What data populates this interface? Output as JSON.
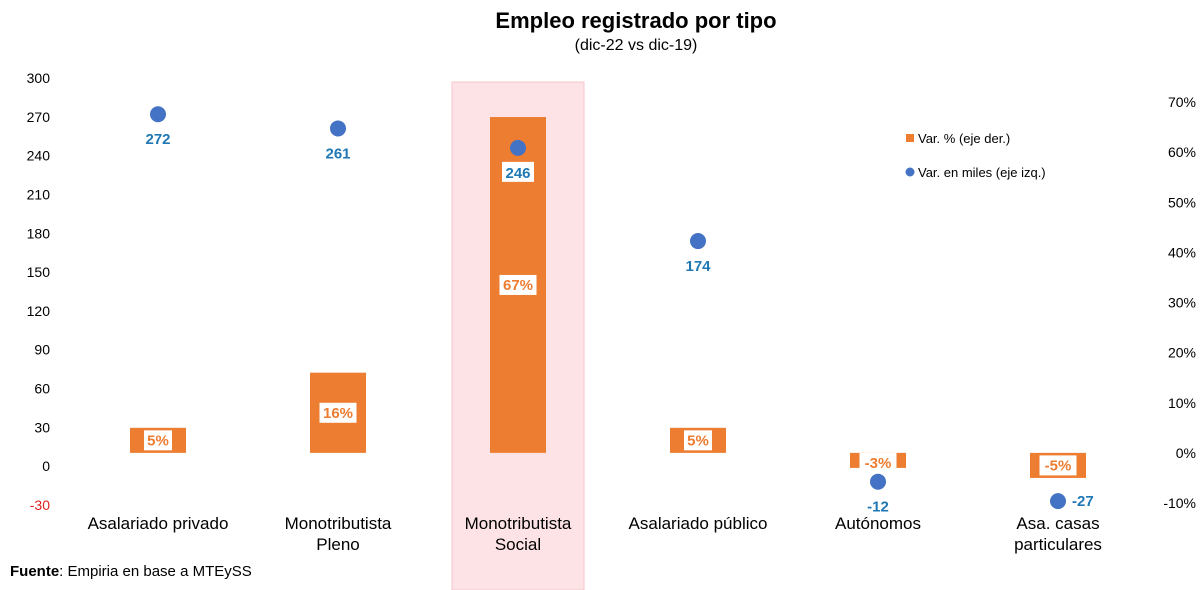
{
  "chart_data": {
    "type": "bar",
    "title": "Empleo registrado por tipo",
    "subtitle": "(dic-22 vs dic-19)",
    "categories": [
      [
        "Asalariado privado"
      ],
      [
        "Monotributista",
        "Pleno"
      ],
      [
        "Monotributista",
        "Social"
      ],
      [
        "Asalariado público"
      ],
      [
        "Autónomos"
      ],
      [
        "Asa. casas",
        "particulares"
      ]
    ],
    "highlighted_category_index": 2,
    "series": [
      {
        "name": "Var. % (eje der.)",
        "kind": "bar",
        "axis": "right",
        "values": [
          5,
          16,
          67,
          5,
          -3,
          -5
        ],
        "labels": [
          "5%",
          "16%",
          "67%",
          "5%",
          "-3%",
          "-5%"
        ]
      },
      {
        "name": "Var. en miles (eje izq.)",
        "kind": "scatter",
        "axis": "left",
        "values": [
          272,
          261,
          246,
          174,
          -12,
          -27
        ],
        "labels": [
          "272",
          "261",
          "246",
          "174",
          "-12",
          "-27"
        ]
      }
    ],
    "y_left": {
      "min": -30,
      "max": 300,
      "ticks": [
        "300",
        "270",
        "240",
        "210",
        "180",
        "150",
        "120",
        "90",
        "60",
        "30",
        "0",
        "-30"
      ]
    },
    "y_right": {
      "min": -10,
      "max": 70,
      "ticks": [
        "70%",
        "60%",
        "50%",
        "40%",
        "30%",
        "20%",
        "10%",
        "0%",
        "-10%"
      ]
    },
    "colors": {
      "bar": "#ed7d31",
      "point": "#4472c4",
      "point_label": "#1f78b4",
      "highlight": "#fde3e6",
      "highlight_border": "#f5c6cb",
      "negative_tick": "#e02020"
    },
    "legend_position": "top-right",
    "grid": false
  },
  "source": {
    "label": "Fuente",
    "text": ": Empiria en base a MTEySS"
  }
}
